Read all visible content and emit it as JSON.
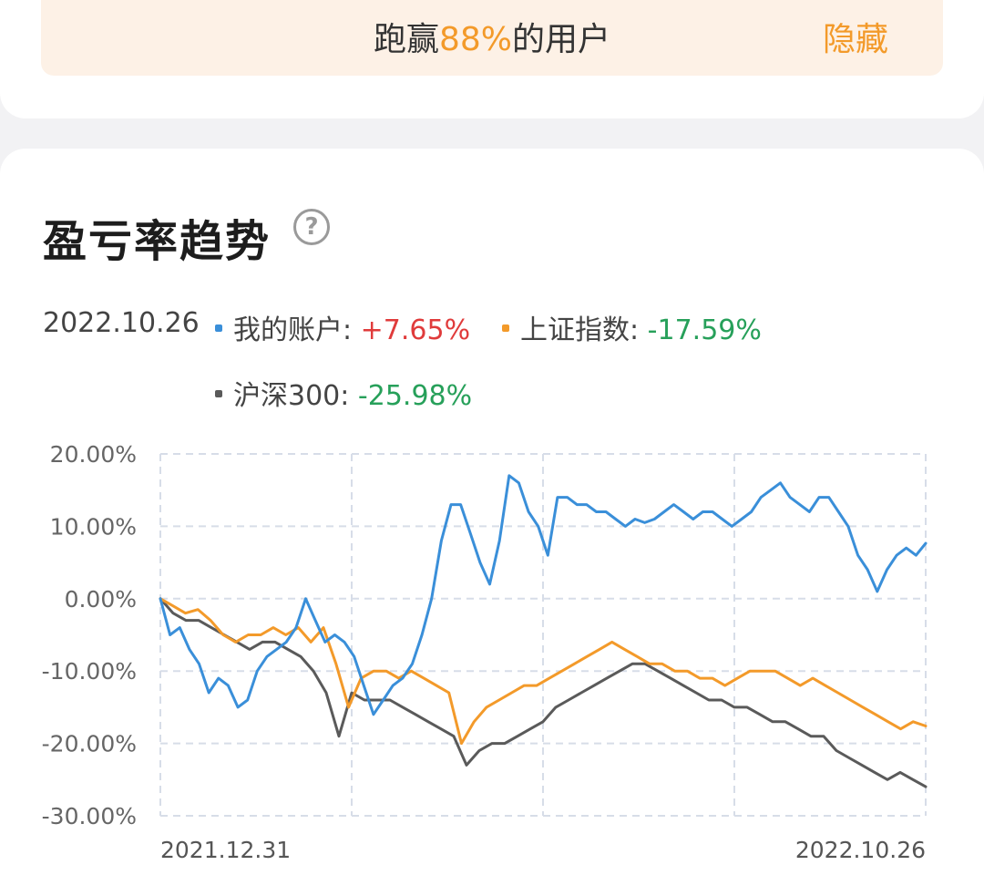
{
  "banner": {
    "prefix": "跑赢",
    "highlight": "88%",
    "suffix": "的用户",
    "hide_label": "隐藏"
  },
  "card": {
    "title": "盈亏率趋势",
    "help_icon": "question-circle-icon",
    "date": "2022.10.26"
  },
  "legend": [
    {
      "name": "我的账户:",
      "value": "+7.65%",
      "color": "#3a8fd9"
    },
    {
      "name": "上证指数:",
      "value": "-17.59%",
      "color": "#f39a2a"
    },
    {
      "name": "沪深300:",
      "value": "-25.98%",
      "color": "#5a5a5a"
    }
  ],
  "colors": {
    "positive": "#e03b3b",
    "negative": "#27a05a",
    "accent": "#f39a2a"
  },
  "chart_data": {
    "type": "line",
    "x_start_label": "2021.12.31",
    "x_end_label": "2022.10.26",
    "y_ticks": [
      "20.00%",
      "10.00%",
      "0.00%",
      "-10.00%",
      "-20.00%",
      "-30.00%"
    ],
    "ylim": [
      -30,
      20
    ],
    "grid": true,
    "series": [
      {
        "name": "我的账户",
        "color": "#3a8fd9",
        "values": [
          0,
          -5,
          -4,
          -7,
          -9,
          -13,
          -11,
          -12,
          -15,
          -14,
          -10,
          -8,
          -7,
          -6,
          -4,
          0,
          -3,
          -6,
          -5,
          -6,
          -8,
          -12,
          -16,
          -14,
          -12,
          -11,
          -9,
          -5,
          0,
          8,
          13,
          13,
          9,
          5,
          2,
          8,
          17,
          16,
          12,
          10,
          6,
          14,
          14,
          13,
          13,
          12,
          12,
          11,
          10,
          11,
          10.5,
          11,
          12,
          13,
          12,
          11,
          12,
          12,
          11,
          10,
          11,
          12,
          14,
          15,
          16,
          14,
          13,
          12,
          14,
          14,
          12,
          10,
          6,
          4,
          1,
          4,
          6,
          7,
          6,
          7.65
        ]
      },
      {
        "name": "上证指数",
        "color": "#f39a2a",
        "values": [
          0,
          -1,
          -2,
          -1.5,
          -3,
          -5,
          -6,
          -5,
          -5,
          -4,
          -5,
          -4,
          -6,
          -4,
          -9,
          -15,
          -11,
          -10,
          -10,
          -11,
          -10,
          -11,
          -12,
          -13,
          -20,
          -17,
          -15,
          -14,
          -13,
          -12,
          -12,
          -11,
          -10,
          -9,
          -8,
          -7,
          -6,
          -7,
          -8,
          -9,
          -9,
          -10,
          -10,
          -11,
          -11,
          -12,
          -11,
          -10,
          -10,
          -10,
          -11,
          -12,
          -11,
          -12,
          -13,
          -14,
          -15,
          -16,
          -17,
          -18,
          -17,
          -17.59
        ]
      },
      {
        "name": "沪深300",
        "color": "#5a5a5a",
        "values": [
          0,
          -2,
          -3,
          -3,
          -4,
          -5,
          -6,
          -7,
          -6,
          -6,
          -7,
          -8,
          -10,
          -13,
          -19,
          -13,
          -14,
          -14,
          -14,
          -15,
          -16,
          -17,
          -18,
          -19,
          -23,
          -21,
          -20,
          -20,
          -19,
          -18,
          -17,
          -15,
          -14,
          -13,
          -12,
          -11,
          -10,
          -9,
          -9,
          -10,
          -11,
          -12,
          -13,
          -14,
          -14,
          -15,
          -15,
          -16,
          -17,
          -17,
          -18,
          -19,
          -19,
          -21,
          -22,
          -23,
          -24,
          -25,
          -24,
          -25,
          -25.98
        ]
      }
    ]
  }
}
